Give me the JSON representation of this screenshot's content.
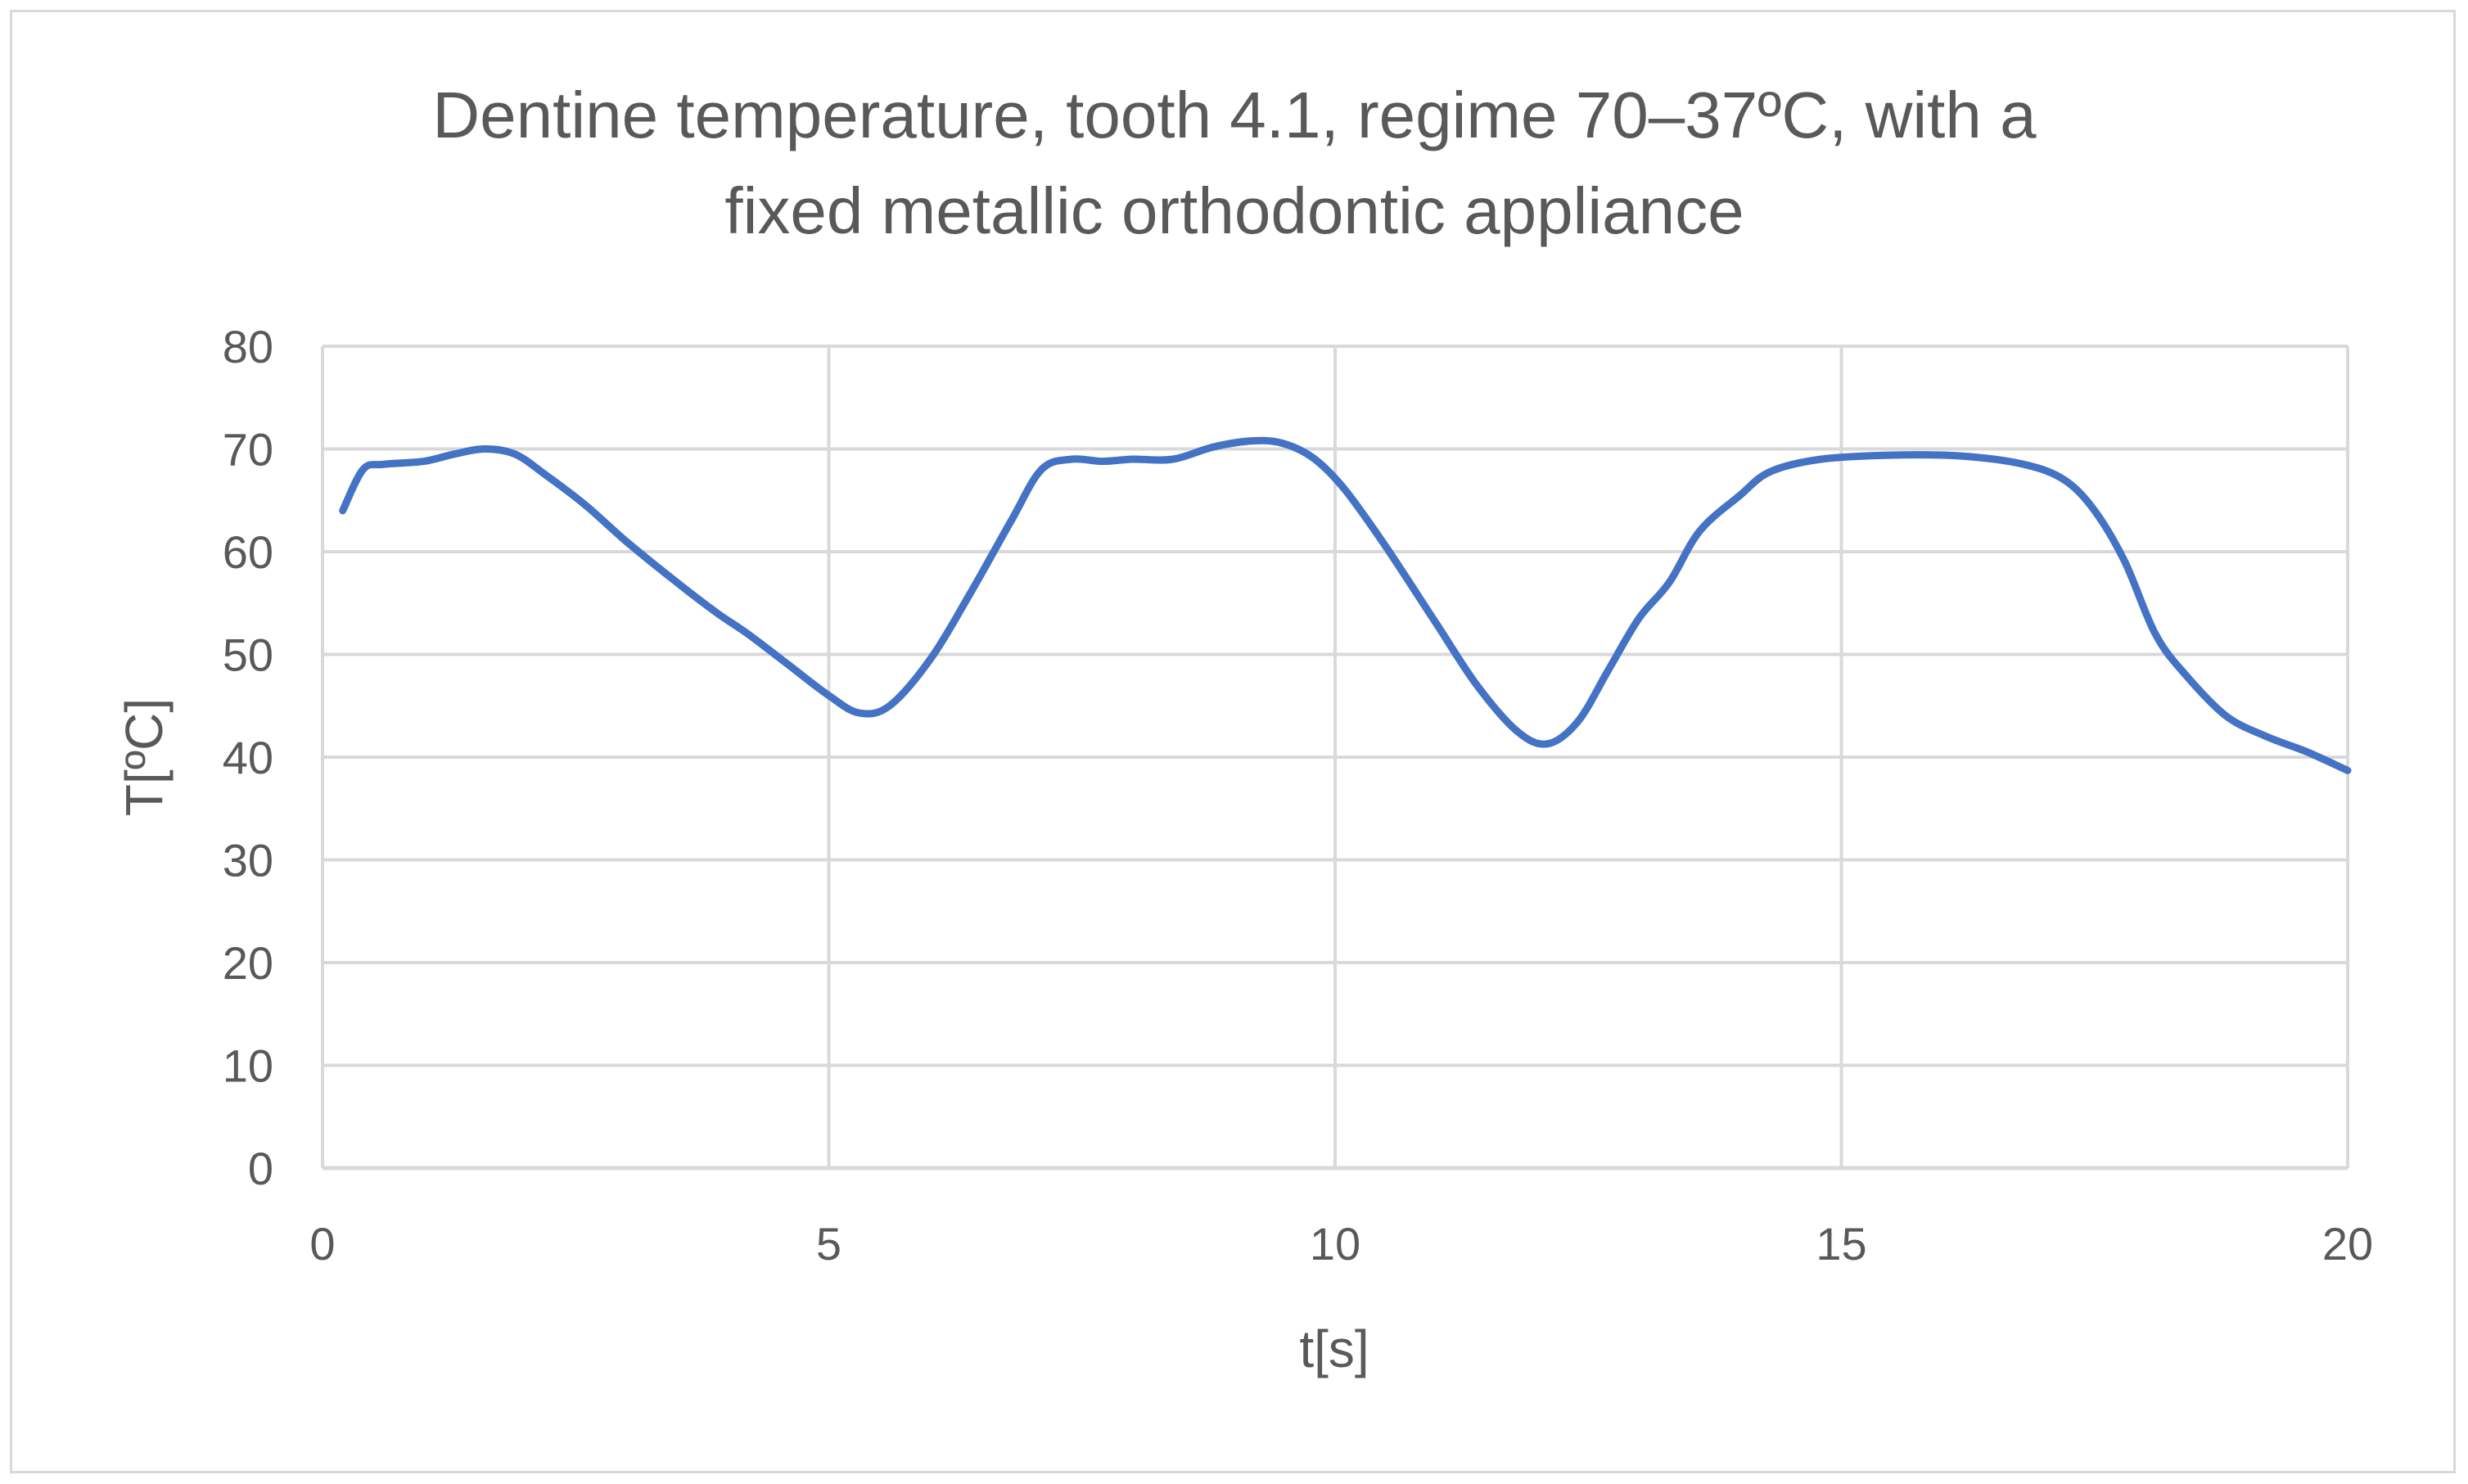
{
  "chart_data": {
    "type": "line",
    "title_line1": "Dentine temperature, tooth 4.1, regime 70–37ºC, with a",
    "title_line2": "fixed metallic orthodontic appliance",
    "xlabel": "t[s]",
    "ylabel": "T[ºC]",
    "xlim": [
      0,
      20
    ],
    "ylim": [
      0,
      80
    ],
    "x_ticks": [
      0,
      5,
      10,
      15,
      20
    ],
    "y_ticks": [
      0,
      10,
      20,
      30,
      40,
      50,
      60,
      70,
      80
    ],
    "grid": true,
    "legend": "none",
    "line_color": "#4472c4",
    "grid_color": "#d9d9d9",
    "series": [
      {
        "x": [
          0.2,
          0.4,
          0.6,
          1.0,
          1.3,
          1.6,
          1.9,
          2.2,
          2.6,
          3.0,
          3.5,
          3.9,
          4.2,
          4.6,
          5.0,
          5.3,
          5.6,
          6.0,
          6.4,
          6.8,
          7.1,
          7.4,
          7.7,
          8.0,
          8.4,
          8.8,
          9.2,
          9.5,
          9.8,
          10.1,
          10.5,
          11.0,
          11.4,
          11.8,
          12.1,
          12.4,
          12.7,
          13.0,
          13.3,
          13.6,
          14.0,
          14.3,
          14.8,
          15.5,
          16.2,
          16.8,
          17.2,
          17.5,
          17.8,
          18.1,
          18.4,
          18.8,
          19.2,
          19.6,
          20.0
        ],
        "y": [
          64,
          68,
          68.5,
          68.8,
          69.5,
          70,
          69.5,
          67.5,
          64.5,
          61,
          57,
          54,
          52,
          49,
          46,
          44.3,
          45,
          49.5,
          56,
          63,
          68,
          69,
          68.8,
          69,
          69,
          70.2,
          70.8,
          70.5,
          69,
          66,
          60.5,
          53,
          47,
          42.5,
          41.3,
          43.5,
          48.5,
          53.5,
          57,
          62,
          65.5,
          67.8,
          69,
          69.4,
          69.3,
          68.5,
          67,
          64,
          59,
          52,
          48,
          44,
          42,
          40.5,
          38.7
        ]
      }
    ]
  }
}
